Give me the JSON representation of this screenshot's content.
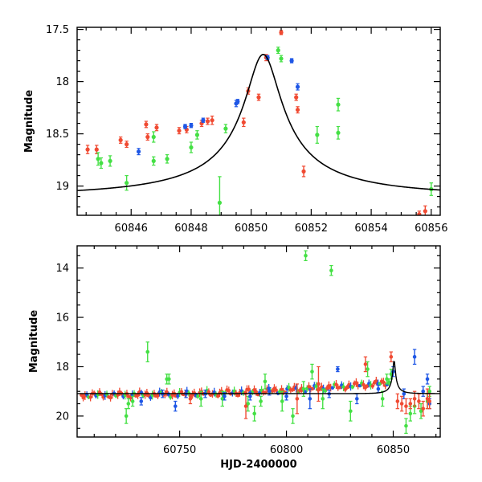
{
  "colors": {
    "red": "#f04a32",
    "green": "#44e044",
    "blue": "#1f57e6",
    "curve": "#000000"
  },
  "chart_data": [
    {
      "type": "scatter",
      "xlabel": "",
      "ylabel": "Magnitude",
      "xlim": [
        60844.2,
        60856.3
      ],
      "ylim": [
        19.28,
        17.48
      ],
      "x_ticks": [
        60846,
        60848,
        60850,
        60852,
        60854,
        60856
      ],
      "y_ticks": [
        17.5,
        18,
        18.5,
        19
      ],
      "x_tick_labels": [
        "60846",
        "60848",
        "60850",
        "60852",
        "60854",
        "60856"
      ],
      "y_tick_labels": [
        "17.5",
        "18",
        "18.5",
        "19"
      ],
      "model_curve": {
        "t0": 60850.4,
        "peak_mag": 17.74,
        "base_mag": 19.09,
        "u0": 0.1,
        "tE": 6.0
      },
      "series": [
        {
          "color": "red",
          "points": [
            {
              "x": 60844.55,
              "y": 18.65,
              "e": 0.04
            },
            {
              "x": 60844.85,
              "y": 18.65,
              "e": 0.04
            },
            {
              "x": 60845.65,
              "y": 18.56,
              "e": 0.03
            },
            {
              "x": 60845.85,
              "y": 18.6,
              "e": 0.03
            },
            {
              "x": 60846.5,
              "y": 18.41,
              "e": 0.03
            },
            {
              "x": 60846.55,
              "y": 18.53,
              "e": 0.03
            },
            {
              "x": 60846.85,
              "y": 18.44,
              "e": 0.03
            },
            {
              "x": 60847.6,
              "y": 18.47,
              "e": 0.03
            },
            {
              "x": 60847.85,
              "y": 18.46,
              "e": 0.03
            },
            {
              "x": 60848.35,
              "y": 18.4,
              "e": 0.03
            },
            {
              "x": 60848.55,
              "y": 18.38,
              "e": 0.03
            },
            {
              "x": 60848.7,
              "y": 18.37,
              "e": 0.04
            },
            {
              "x": 60849.75,
              "y": 18.39,
              "e": 0.04
            },
            {
              "x": 60849.9,
              "y": 18.09,
              "e": 0.03
            },
            {
              "x": 60850.25,
              "y": 18.15,
              "e": 0.03
            },
            {
              "x": 60850.5,
              "y": 17.77,
              "e": 0.03
            },
            {
              "x": 60851.0,
              "y": 17.53,
              "e": 0.02
            },
            {
              "x": 60851.5,
              "y": 18.15,
              "e": 0.03
            },
            {
              "x": 60851.55,
              "y": 18.27,
              "e": 0.03
            },
            {
              "x": 60851.75,
              "y": 18.86,
              "e": 0.05
            },
            {
              "x": 60855.6,
              "y": 19.27,
              "e": 0.03
            },
            {
              "x": 60855.8,
              "y": 19.24,
              "e": 0.05
            }
          ]
        },
        {
          "color": "green",
          "points": [
            {
              "x": 60844.9,
              "y": 18.74,
              "e": 0.06
            },
            {
              "x": 60845.0,
              "y": 18.78,
              "e": 0.05
            },
            {
              "x": 60845.3,
              "y": 18.76,
              "e": 0.05
            },
            {
              "x": 60845.85,
              "y": 18.97,
              "e": 0.07
            },
            {
              "x": 60846.75,
              "y": 18.53,
              "e": 0.05
            },
            {
              "x": 60846.75,
              "y": 18.76,
              "e": 0.04
            },
            {
              "x": 60847.2,
              "y": 18.74,
              "e": 0.04
            },
            {
              "x": 60848.0,
              "y": 18.63,
              "e": 0.05
            },
            {
              "x": 60848.2,
              "y": 18.51,
              "e": 0.04
            },
            {
              "x": 60848.95,
              "y": 19.16,
              "e": 0.25
            },
            {
              "x": 60849.15,
              "y": 18.45,
              "e": 0.04
            },
            {
              "x": 60850.9,
              "y": 17.7,
              "e": 0.03
            },
            {
              "x": 60851.0,
              "y": 17.78,
              "e": 0.03
            },
            {
              "x": 60852.2,
              "y": 18.51,
              "e": 0.08
            },
            {
              "x": 60852.9,
              "y": 18.22,
              "e": 0.06
            },
            {
              "x": 60852.9,
              "y": 18.49,
              "e": 0.06
            },
            {
              "x": 60856.0,
              "y": 19.03,
              "e": 0.06
            }
          ]
        },
        {
          "color": "blue",
          "points": [
            {
              "x": 60846.25,
              "y": 18.67,
              "e": 0.03
            },
            {
              "x": 60847.8,
              "y": 18.43,
              "e": 0.02
            },
            {
              "x": 60848.0,
              "y": 18.42,
              "e": 0.02
            },
            {
              "x": 60848.4,
              "y": 18.37,
              "e": 0.02
            },
            {
              "x": 60849.5,
              "y": 18.21,
              "e": 0.03
            },
            {
              "x": 60849.55,
              "y": 18.19,
              "e": 0.02
            },
            {
              "x": 60850.55,
              "y": 17.77,
              "e": 0.02
            },
            {
              "x": 60851.35,
              "y": 17.8,
              "e": 0.02
            },
            {
              "x": 60851.55,
              "y": 18.05,
              "e": 0.03
            }
          ]
        }
      ]
    },
    {
      "type": "scatter",
      "xlabel": "HJD-2400000",
      "ylabel": "Magnitude",
      "xlim": [
        60702,
        60872
      ],
      "ylim": [
        20.85,
        13.1
      ],
      "x_ticks": [
        60750,
        60800,
        60850
      ],
      "y_ticks": [
        14,
        16,
        18,
        20
      ],
      "x_tick_labels": [
        "60750",
        "60800",
        "60850"
      ],
      "y_tick_labels": [
        "14",
        "16",
        "18",
        "20"
      ],
      "model_curve": {
        "t0": 60850.4,
        "peak_mag": 17.74,
        "base_mag": 19.09,
        "u0": 0.1,
        "tE": 6.0
      },
      "dense_band": {
        "x_start": 60704,
        "x_end": 60848,
        "mag_start": 19.15,
        "mag_end": 18.65
      },
      "series": [
        {
          "color": "green",
          "points": [
            {
              "x": 60735,
              "y": 17.4,
              "e": 0.4
            },
            {
              "x": 60725,
              "y": 20.0,
              "e": 0.3
            },
            {
              "x": 60726,
              "y": 19.5,
              "e": 0.2
            },
            {
              "x": 60728,
              "y": 19.4,
              "e": 0.2
            },
            {
              "x": 60744,
              "y": 18.5,
              "e": 0.2
            },
            {
              "x": 60745,
              "y": 18.5,
              "e": 0.2
            },
            {
              "x": 60760,
              "y": 19.3,
              "e": 0.3
            },
            {
              "x": 60770,
              "y": 19.3,
              "e": 0.3
            },
            {
              "x": 60782,
              "y": 19.5,
              "e": 0.3
            },
            {
              "x": 60785,
              "y": 19.9,
              "e": 0.3
            },
            {
              "x": 60788,
              "y": 19.4,
              "e": 0.2
            },
            {
              "x": 60790,
              "y": 18.6,
              "e": 0.3
            },
            {
              "x": 60798,
              "y": 19.4,
              "e": 0.4
            },
            {
              "x": 60803,
              "y": 20.0,
              "e": 0.3
            },
            {
              "x": 60808,
              "y": 18.9,
              "e": 0.3
            },
            {
              "x": 60809,
              "y": 13.5,
              "e": 0.2
            },
            {
              "x": 60812,
              "y": 18.2,
              "e": 0.3
            },
            {
              "x": 60817,
              "y": 19.3,
              "e": 0.4
            },
            {
              "x": 60821,
              "y": 14.1,
              "e": 0.2
            },
            {
              "x": 60830,
              "y": 19.8,
              "e": 0.4
            },
            {
              "x": 60838,
              "y": 18.1,
              "e": 0.3
            },
            {
              "x": 60845,
              "y": 19.3,
              "e": 0.3
            },
            {
              "x": 60847,
              "y": 18.5,
              "e": 0.2
            },
            {
              "x": 60849,
              "y": 18.3,
              "e": 0.2
            },
            {
              "x": 60856,
              "y": 20.4,
              "e": 0.3
            },
            {
              "x": 60858,
              "y": 19.9,
              "e": 0.3
            },
            {
              "x": 60860,
              "y": 19.6,
              "e": 0.3
            },
            {
              "x": 60863,
              "y": 19.8,
              "e": 0.3
            },
            {
              "x": 60866,
              "y": 19.4,
              "e": 0.3
            },
            {
              "x": 60867,
              "y": 19.0,
              "e": 0.2
            }
          ]
        },
        {
          "color": "blue",
          "points": [
            {
              "x": 60732,
              "y": 19.4,
              "e": 0.15
            },
            {
              "x": 60742,
              "y": 19.1,
              "e": 0.15
            },
            {
              "x": 60748,
              "y": 19.6,
              "e": 0.2
            },
            {
              "x": 60753,
              "y": 19.1,
              "e": 0.15
            },
            {
              "x": 60762,
              "y": 19.1,
              "e": 0.15
            },
            {
              "x": 60771,
              "y": 19.2,
              "e": 0.15
            },
            {
              "x": 60783,
              "y": 19.2,
              "e": 0.15
            },
            {
              "x": 60792,
              "y": 19.0,
              "e": 0.15
            },
            {
              "x": 60800,
              "y": 19.2,
              "e": 0.15
            },
            {
              "x": 60811,
              "y": 19.3,
              "e": 0.4
            },
            {
              "x": 60820,
              "y": 19.1,
              "e": 0.15
            },
            {
              "x": 60824,
              "y": 18.1,
              "e": 0.1
            },
            {
              "x": 60833,
              "y": 19.3,
              "e": 0.2
            },
            {
              "x": 60843,
              "y": 18.9,
              "e": 0.15
            },
            {
              "x": 60850,
              "y": 18.2,
              "e": 0.2
            },
            {
              "x": 60855,
              "y": 19.1,
              "e": 0.2
            },
            {
              "x": 60860,
              "y": 17.6,
              "e": 0.3
            },
            {
              "x": 60864,
              "y": 19.0,
              "e": 0.2
            },
            {
              "x": 60866,
              "y": 18.5,
              "e": 0.2
            },
            {
              "x": 60867,
              "y": 19.5,
              "e": 0.2
            }
          ]
        },
        {
          "color": "red",
          "points": [
            {
              "x": 60755,
              "y": 19.3,
              "e": 0.2
            },
            {
              "x": 60781,
              "y": 19.6,
              "e": 0.5
            },
            {
              "x": 60805,
              "y": 19.3,
              "e": 0.6
            },
            {
              "x": 60815,
              "y": 18.7,
              "e": 0.7
            },
            {
              "x": 60837,
              "y": 17.9,
              "e": 0.3
            },
            {
              "x": 60849,
              "y": 17.6,
              "e": 0.2
            },
            {
              "x": 60852,
              "y": 19.4,
              "e": 0.3
            },
            {
              "x": 60854,
              "y": 19.5,
              "e": 0.3
            },
            {
              "x": 60856,
              "y": 19.6,
              "e": 0.3
            },
            {
              "x": 60858,
              "y": 19.5,
              "e": 0.2
            },
            {
              "x": 60860,
              "y": 19.3,
              "e": 0.3
            },
            {
              "x": 60862,
              "y": 19.4,
              "e": 0.3
            },
            {
              "x": 60864,
              "y": 19.7,
              "e": 0.3
            },
            {
              "x": 60866,
              "y": 19.3,
              "e": 0.4
            },
            {
              "x": 60867,
              "y": 19.4,
              "e": 0.3
            }
          ]
        }
      ]
    }
  ]
}
